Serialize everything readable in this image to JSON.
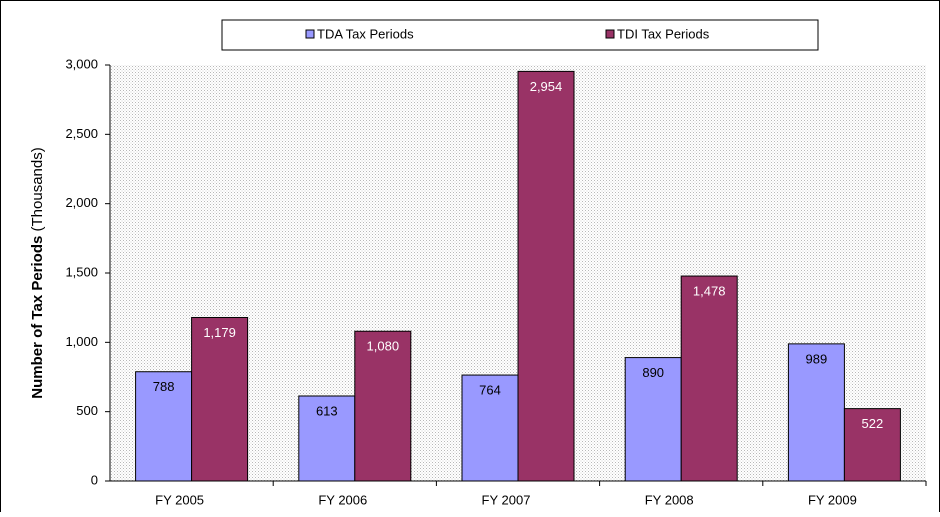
{
  "chart_data": {
    "type": "bar",
    "ylabel": "Number of Tax Periods",
    "ylabel_note": "(Thousands)",
    "categories": [
      "FY 2005",
      "FY 2006",
      "FY 2007",
      "FY 2008",
      "FY 2009"
    ],
    "series": [
      {
        "name": "TDA Tax Periods",
        "color": "#9999ff",
        "label_color": "#000000",
        "values": [
          788,
          613,
          764,
          890,
          989
        ],
        "value_labels": [
          "788",
          "613",
          "764",
          "890",
          "989"
        ]
      },
      {
        "name": "TDI Tax Periods",
        "color": "#993366",
        "label_color": "#ffffff",
        "values": [
          1179,
          1080,
          2954,
          1478,
          522
        ],
        "value_labels": [
          "1,179",
          "1,080",
          "2,954",
          "1,478",
          "522"
        ]
      }
    ],
    "ylim": [
      0,
      3000
    ],
    "yticks": [
      0,
      500,
      {
        "value": 1000,
        "label": "1,000"
      },
      {
        "value": 1500,
        "label": "1,500"
      },
      {
        "value": 2000,
        "label": "2,000"
      },
      {
        "value": 2500,
        "label": "2,500"
      },
      {
        "value": 3000,
        "label": "3,000"
      }
    ],
    "legend": "top"
  }
}
